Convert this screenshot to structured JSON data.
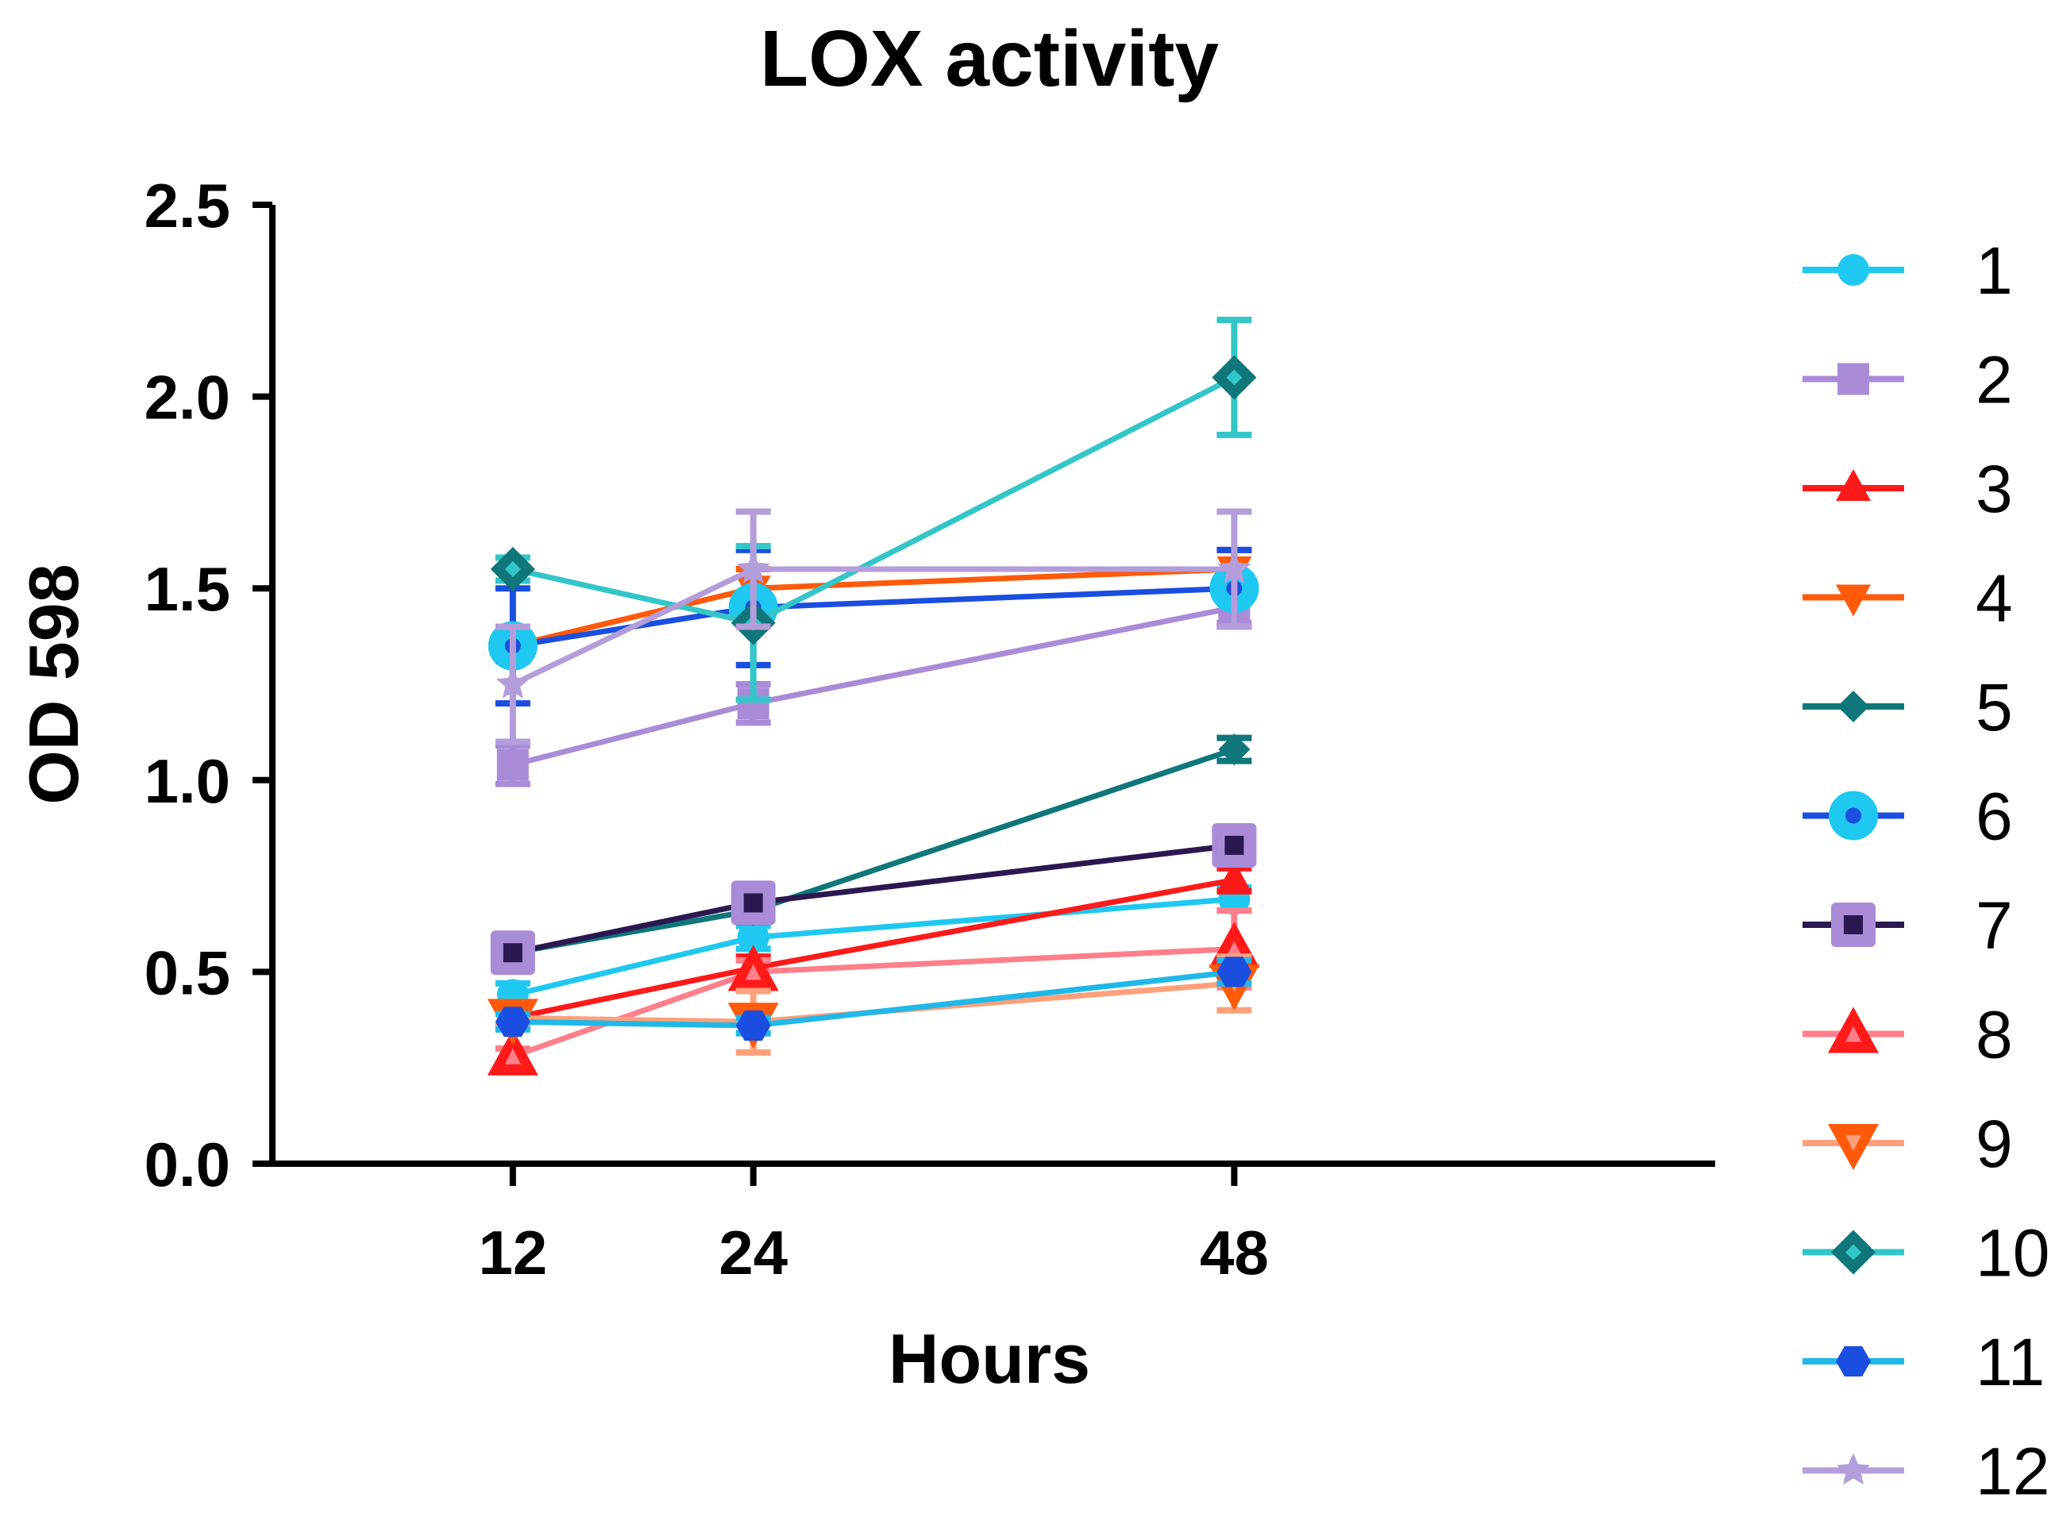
{
  "chart_data": {
    "type": "line",
    "title": "LOX activity",
    "xlabel": "Hours",
    "ylabel": "OD 598",
    "x": [
      12,
      24,
      48
    ],
    "x_tick_labels": [
      "12",
      "24",
      "48"
    ],
    "xlim": [
      0,
      72
    ],
    "ylim": [
      0,
      2.5
    ],
    "y_ticks": [
      0.0,
      0.5,
      1.0,
      1.5,
      2.0,
      2.5
    ],
    "y_tick_labels": [
      "0.0",
      "0.5",
      "1.0",
      "1.5",
      "2.0",
      "2.5"
    ],
    "grid": false,
    "legend_position": "right",
    "series": [
      {
        "name": "1",
        "color": "#1ec8f0",
        "marker": "circle",
        "values": [
          0.44,
          0.59,
          0.69
        ],
        "errors": [
          0.03,
          0.03,
          0.03
        ]
      },
      {
        "name": "2",
        "color": "#a98bd8",
        "marker": "square",
        "values": [
          1.04,
          1.2,
          1.45
        ],
        "errors": [
          0.05,
          0.05,
          0.04
        ]
      },
      {
        "name": "3",
        "color": "#ff1a1a",
        "marker": "triangle-up",
        "values": [
          0.38,
          0.51,
          0.74
        ],
        "errors": [
          0.02,
          0.03,
          0.03
        ]
      },
      {
        "name": "4",
        "color": "#ff5a0a",
        "marker": "triangle-down",
        "values": [
          1.35,
          1.5,
          1.55
        ],
        "errors": [
          0.04,
          0.05,
          0.05
        ]
      },
      {
        "name": "5",
        "color": "#0f767a",
        "marker": "diamond",
        "values": [
          0.55,
          0.66,
          1.08
        ],
        "errors": [
          0.02,
          0.03,
          0.03
        ]
      },
      {
        "name": "6",
        "color": "#1a4ee0",
        "marker": "circle-dot",
        "values": [
          1.35,
          1.45,
          1.5
        ],
        "errors": [
          0.15,
          0.15,
          0.1
        ]
      },
      {
        "name": "7",
        "color": "#2b1850",
        "marker": "square-dot",
        "values": [
          0.55,
          0.68,
          0.83
        ],
        "errors": [
          0.02,
          0.03,
          0.03
        ]
      },
      {
        "name": "8",
        "color": "#ff7f8a",
        "marker": "triangle-up-open",
        "values": [
          0.28,
          0.5,
          0.56
        ],
        "errors": [
          0.02,
          0.03,
          0.1
        ]
      },
      {
        "name": "9",
        "color": "#ffa07a",
        "marker": "triangle-down-open",
        "values": [
          0.38,
          0.37,
          0.47
        ],
        "errors": [
          0.02,
          0.08,
          0.07
        ]
      },
      {
        "name": "10",
        "color": "#33c6c8",
        "marker": "diamond-open",
        "values": [
          1.55,
          1.41,
          2.05
        ],
        "errors": [
          0.03,
          0.2,
          0.15
        ]
      },
      {
        "name": "11",
        "color": "#1fb8e8",
        "marker": "hexagon",
        "values": [
          0.37,
          0.36,
          0.5
        ],
        "errors": [
          0.02,
          0.02,
          0.03
        ]
      },
      {
        "name": "12",
        "color": "#b39ddb",
        "marker": "star",
        "values": [
          1.25,
          1.55,
          1.55
        ],
        "errors": [
          0.15,
          0.15,
          0.15
        ]
      }
    ]
  }
}
